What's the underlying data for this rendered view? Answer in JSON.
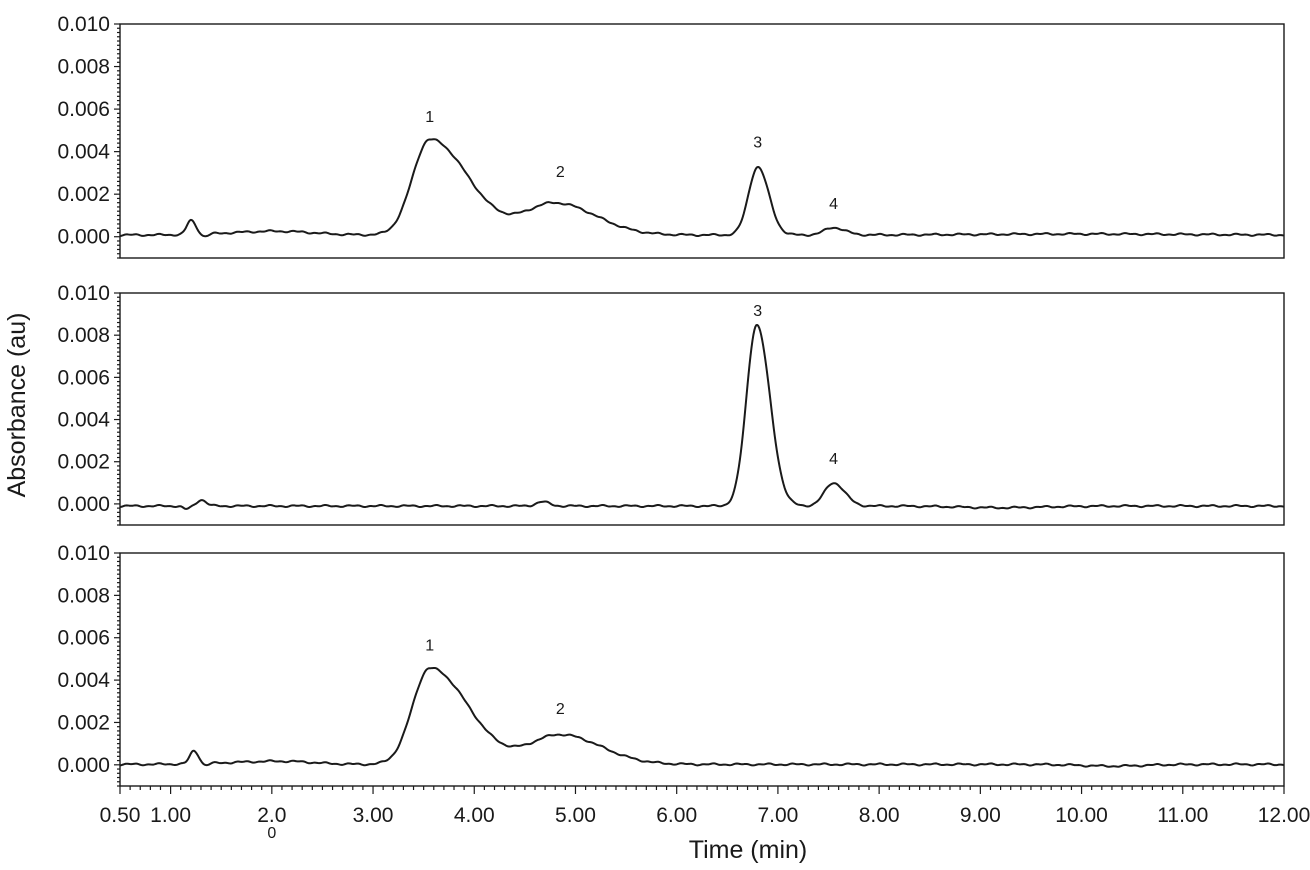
{
  "chart_data": {
    "type": "line",
    "ylabel": "Absorbance (au)",
    "xlabel": "Time (min)",
    "xlim": [
      0.5,
      12.0
    ],
    "x_ticks": [
      "0.50",
      "1.00",
      "2.0",
      "3.00",
      "4.00",
      "5.00",
      "6.00",
      "7.00",
      "8.00",
      "9.00",
      "10.00",
      "11.00",
      "12.00"
    ],
    "x_tick_values": [
      0.5,
      1.0,
      2.0,
      3.0,
      4.0,
      5.0,
      6.0,
      7.0,
      8.0,
      9.0,
      10.0,
      11.0,
      12.0
    ],
    "x_tick_stray_char": "0",
    "y_ticks": [
      "0.010",
      "0.008",
      "0.006",
      "0.004",
      "0.002",
      "0.000"
    ],
    "y_tick_values": [
      0.01,
      0.008,
      0.006,
      0.004,
      0.002,
      0.0
    ],
    "grid": false,
    "panels": [
      {
        "ylim": [
          -0.001,
          0.01
        ],
        "baseline": 8e-05,
        "peak_labels": [
          {
            "text": "1",
            "x": 3.56,
            "y": 0.0054
          },
          {
            "text": "2",
            "x": 4.85,
            "y": 0.0028
          },
          {
            "text": "3",
            "x": 6.8,
            "y": 0.0042
          },
          {
            "text": "4",
            "x": 7.55,
            "y": 0.0013
          }
        ],
        "peaks": [
          {
            "x": 1.2,
            "height": 0.00065,
            "width_left": 0.04,
            "width_right": 0.05
          },
          {
            "x": 1.33,
            "height": -0.00012,
            "width_left": 0.03,
            "width_right": 0.04
          },
          {
            "x": 2.05,
            "height": 0.00018,
            "width_left": 0.45,
            "width_right": 0.35
          },
          {
            "x": 3.56,
            "height": 0.0045,
            "width_left": 0.17,
            "width_right": 0.38
          },
          {
            "x": 4.8,
            "height": 0.0015,
            "width_left": 0.3,
            "width_right": 0.4
          },
          {
            "x": 6.8,
            "height": 0.0032,
            "width_left": 0.09,
            "width_right": 0.11
          },
          {
            "x": 7.55,
            "height": 0.00035,
            "width_left": 0.09,
            "width_right": 0.11
          },
          {
            "x": 10.0,
            "height": 5e-05,
            "width_left": 1.0,
            "width_right": 1.0
          }
        ]
      },
      {
        "ylim": [
          -0.001,
          0.01
        ],
        "baseline": -0.0001,
        "peak_labels": [
          {
            "text": "3",
            "x": 6.8,
            "y": 0.0089
          },
          {
            "text": "4",
            "x": 7.55,
            "y": 0.0019
          }
        ],
        "peaks": [
          {
            "x": 1.15,
            "height": -0.00015,
            "width_left": 0.03,
            "width_right": 0.04
          },
          {
            "x": 1.3,
            "height": 0.0003,
            "width_left": 0.04,
            "width_right": 0.05
          },
          {
            "x": 4.67,
            "height": 0.0002,
            "width_left": 0.06,
            "width_right": 0.07
          },
          {
            "x": 6.79,
            "height": 0.0086,
            "width_left": 0.1,
            "width_right": 0.13
          },
          {
            "x": 7.55,
            "height": 0.0011,
            "width_left": 0.09,
            "width_right": 0.11
          },
          {
            "x": 9.2,
            "height": -8e-05,
            "width_left": 0.4,
            "width_right": 0.4
          }
        ]
      },
      {
        "ylim": [
          -0.001,
          0.01
        ],
        "baseline": 2e-05,
        "peak_labels": [
          {
            "text": "1",
            "x": 3.56,
            "y": 0.0054
          },
          {
            "text": "2",
            "x": 4.85,
            "y": 0.0024
          }
        ],
        "peaks": [
          {
            "x": 1.23,
            "height": 0.0006,
            "width_left": 0.04,
            "width_right": 0.05
          },
          {
            "x": 1.33,
            "height": -0.00012,
            "width_left": 0.03,
            "width_right": 0.04
          },
          {
            "x": 2.1,
            "height": 0.00015,
            "width_left": 0.5,
            "width_right": 0.3
          },
          {
            "x": 3.56,
            "height": 0.00455,
            "width_left": 0.17,
            "width_right": 0.38
          },
          {
            "x": 4.85,
            "height": 0.0014,
            "width_left": 0.3,
            "width_right": 0.4
          },
          {
            "x": 10.3,
            "height": -8e-05,
            "width_left": 0.3,
            "width_right": 0.3
          }
        ]
      }
    ]
  }
}
